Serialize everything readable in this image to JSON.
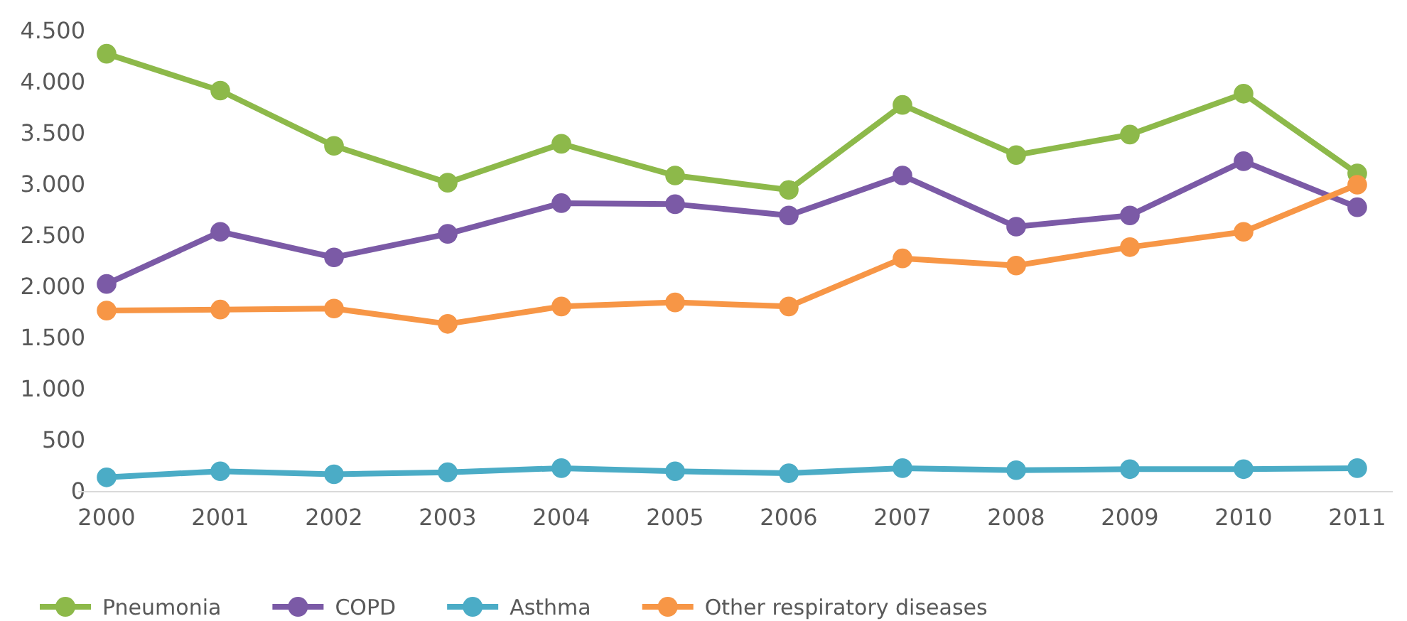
{
  "chart_data": {
    "type": "line",
    "categories": [
      "2000",
      "2001",
      "2002",
      "2003",
      "2004",
      "2005",
      "2006",
      "2007",
      "2008",
      "2009",
      "2010",
      "2011"
    ],
    "series": [
      {
        "name": "Pneumonia",
        "color": "#8db94a",
        "values": [
          4280,
          3920,
          3380,
          3020,
          3400,
          3090,
          2950,
          3780,
          3290,
          3490,
          3890,
          3110
        ]
      },
      {
        "name": "COPD",
        "color": "#7b5aa6",
        "values": [
          2030,
          2540,
          2290,
          2520,
          2820,
          2810,
          2700,
          3090,
          2590,
          2700,
          3230,
          2780
        ]
      },
      {
        "name": "Asthma",
        "color": "#4bacc6",
        "values": [
          140,
          200,
          170,
          190,
          230,
          200,
          180,
          230,
          210,
          220,
          220,
          230
        ]
      },
      {
        "name": "Other respiratory diseases",
        "color": "#f79646",
        "values": [
          1770,
          1780,
          1790,
          1640,
          1810,
          1850,
          1810,
          2280,
          2210,
          2390,
          2540,
          3000
        ]
      }
    ],
    "ylim": [
      0,
      4500
    ],
    "yticks": [
      0,
      500,
      {
        "value": 1000,
        "label": "1.000"
      },
      {
        "value": 1500,
        "label": "1.500"
      },
      {
        "value": 2000,
        "label": "2.000"
      },
      {
        "value": 2500,
        "label": "2.500"
      },
      {
        "value": 3000,
        "label": "3.000"
      },
      {
        "value": 3500,
        "label": "3.500"
      },
      {
        "value": 4000,
        "label": "4.000"
      },
      {
        "value": 4500,
        "label": "4.500"
      }
    ],
    "grid": false,
    "legend": "bottom",
    "marker": "circle",
    "line_style": "solid"
  }
}
